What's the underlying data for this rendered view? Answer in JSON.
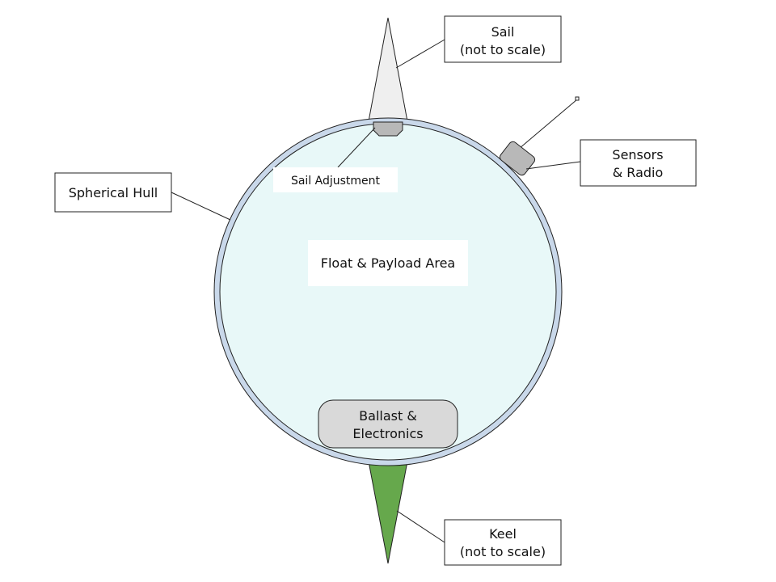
{
  "labels": {
    "sail_line1": "Sail",
    "sail_line2": "(not to scale)",
    "sensors_line1": "Sensors",
    "sensors_line2": "& Radio",
    "hull": "Spherical Hull",
    "sail_adjustment": "Sail Adjustment",
    "float_area": "Float & Payload Area",
    "ballast_line1": "Ballast &",
    "ballast_line2": "Electronics",
    "keel_line1": "Keel",
    "keel_line2": "(not to scale)"
  },
  "colors": {
    "hull_fill": "#e8f8f8",
    "hull_ring": "#c9d8ea",
    "sail": "#efefef",
    "keel": "#66a84c",
    "component_gray": "#b8b8b8",
    "ballast": "#d9d9d9",
    "stroke": "#222222"
  }
}
